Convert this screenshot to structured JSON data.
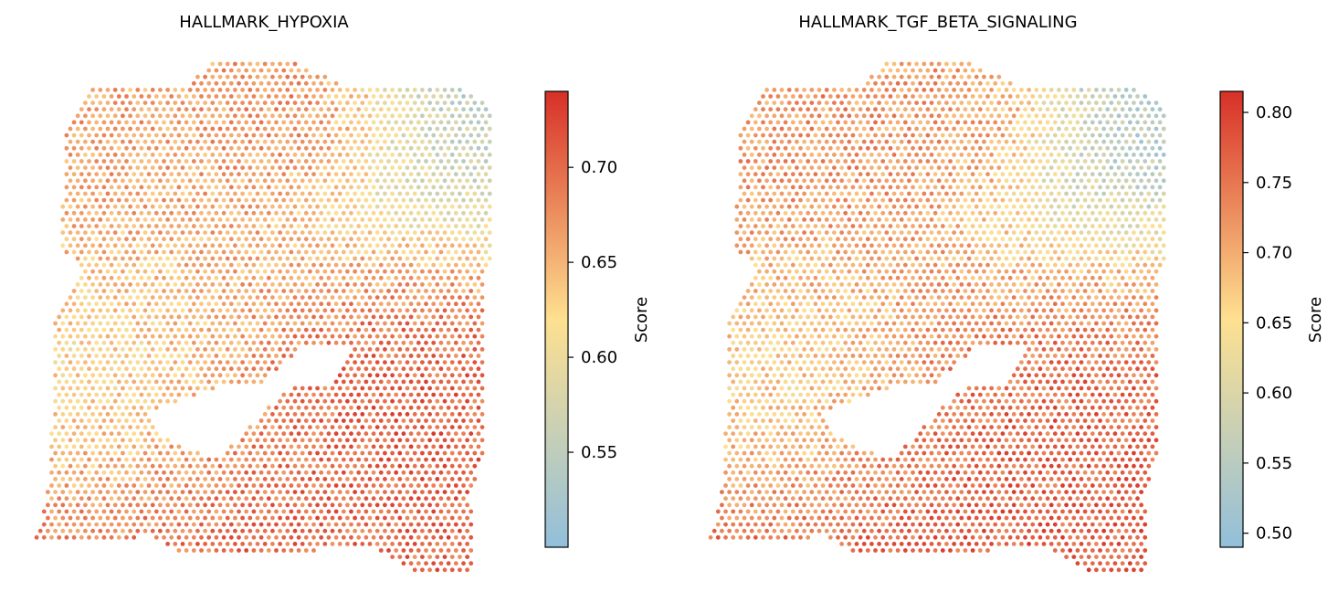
{
  "chart_data": [
    {
      "type": "scatter",
      "subtype": "spatial-spot-map",
      "title": "HALLMARK_HYPOXIA",
      "colorbar": {
        "label": "Score",
        "range": [
          0.5,
          0.74
        ],
        "ticks": [
          "0.55",
          "0.60",
          "0.65",
          "0.70"
        ],
        "tick_values": [
          0.55,
          0.6,
          0.65,
          0.7
        ]
      },
      "colormap": [
        "#91bfdb",
        "#fee090",
        "#d73027"
      ],
      "axes_visible": false,
      "regions": [
        {
          "name": "upper-left tissue",
          "score": 0.66
        },
        {
          "name": "top-center hotspot",
          "score": 0.72
        },
        {
          "name": "upper-right",
          "score": 0.54
        },
        {
          "name": "left-middle band",
          "score": 0.58
        },
        {
          "name": "right-middle hotspot",
          "score": 0.72
        },
        {
          "name": "lower tissue",
          "score": 0.7
        }
      ]
    },
    {
      "type": "scatter",
      "subtype": "spatial-spot-map",
      "title": "HALLMARK_TGF_BETA_SIGNALING",
      "colorbar": {
        "label": "Score",
        "range": [
          0.49,
          0.815
        ],
        "ticks": [
          "0.50",
          "0.55",
          "0.60",
          "0.65",
          "0.70",
          "0.75",
          "0.80"
        ],
        "tick_values": [
          0.5,
          0.55,
          0.6,
          0.65,
          0.7,
          0.75,
          0.8
        ]
      },
      "colormap": [
        "#91bfdb",
        "#fee090",
        "#d73027"
      ],
      "axes_visible": false,
      "regions": [
        {
          "name": "upper-left tissue",
          "score": 0.72
        },
        {
          "name": "top-center hotspot",
          "score": 0.78
        },
        {
          "name": "upper-right",
          "score": 0.52
        },
        {
          "name": "left-middle band",
          "score": 0.6
        },
        {
          "name": "right-middle hotspot",
          "score": 0.77
        },
        {
          "name": "lower tissue",
          "score": 0.77
        }
      ]
    }
  ]
}
